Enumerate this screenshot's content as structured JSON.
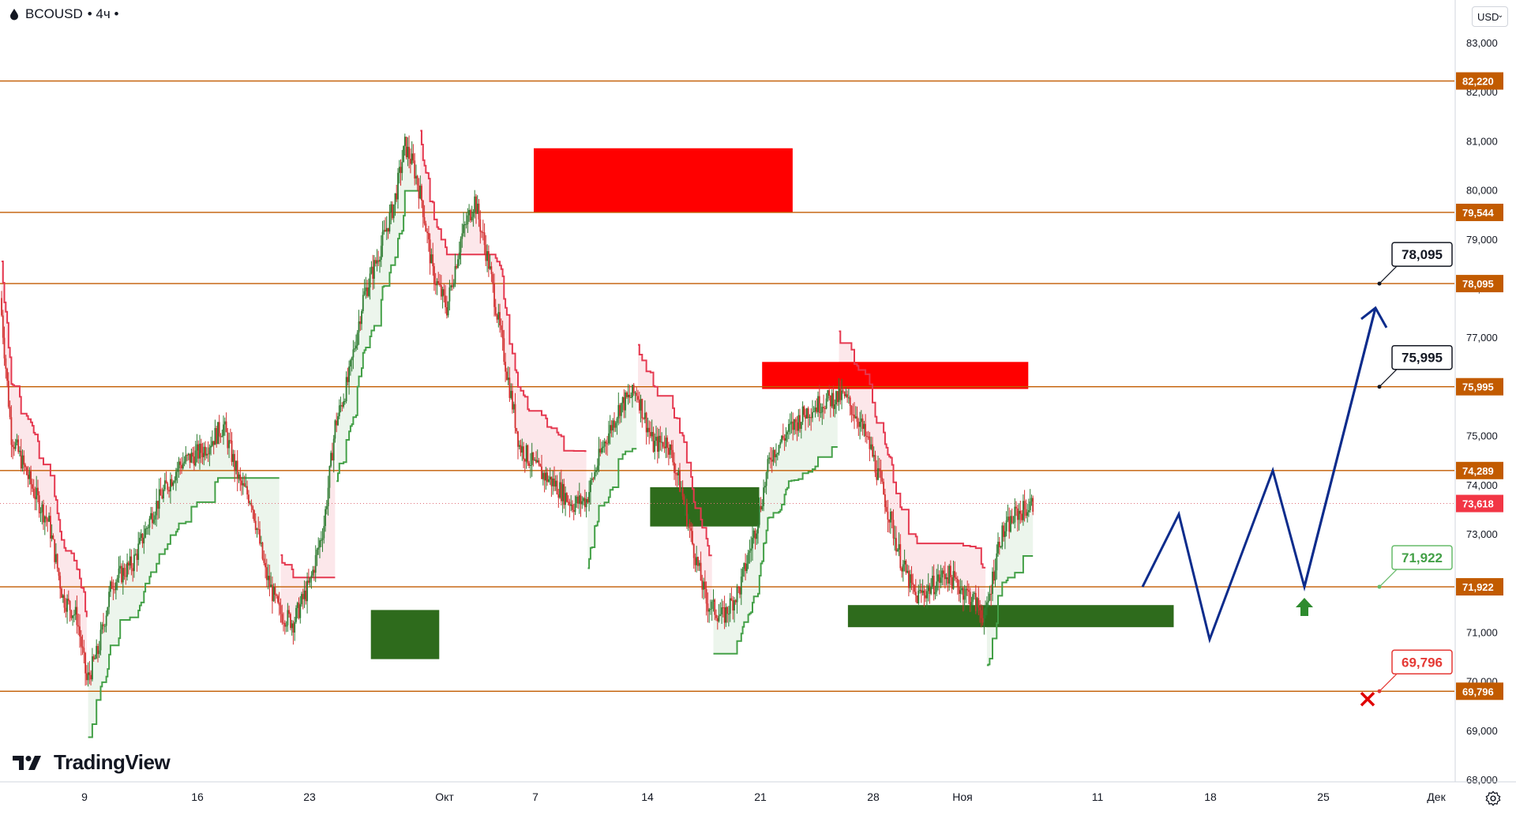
{
  "header": {
    "symbol": "BCOUSD",
    "interval": "• 4ч •"
  },
  "currency_selector": {
    "value": "USD",
    "icon": "chevron-down-icon"
  },
  "branding": {
    "logo_text": "TradingView"
  },
  "settings": {
    "icon": "gear-icon"
  },
  "colors": {
    "up": "#2e7d32",
    "down": "#d32f2f",
    "level": "#c25b00",
    "supertrend_up": "#43a047",
    "supertrend_down": "#e53950",
    "projection": "#0d2c8c",
    "zone_red": "#ff0000",
    "zone_green": "#2e6b1c"
  },
  "chart_data": {
    "type": "candlestick",
    "symbol": "BCOUSD",
    "timeframe": "4ч",
    "y_axis": {
      "range": [
        67700,
        83800
      ],
      "ticks": [
        68000,
        69000,
        70000,
        71000,
        72000,
        73000,
        74000,
        75000,
        76000,
        77000,
        78000,
        79000,
        80000,
        81000,
        82000,
        83000
      ],
      "tick_labels": [
        "68,000",
        "69,000",
        "70,000",
        "71,000",
        "72,000",
        "73,000",
        "74,000",
        "75,000",
        "76,000",
        "77,000",
        "78,000",
        "79,000",
        "80,000",
        "81,000",
        "82,000",
        "83,000"
      ]
    },
    "x_axis": {
      "labels": [
        "9",
        "16",
        "23",
        "Окт",
        "7",
        "14",
        "21",
        "28",
        "Ноя",
        "11",
        "18",
        "25",
        "Дек"
      ]
    },
    "current_price": {
      "value": 73618,
      "label": "73,618"
    },
    "horizontal_levels": [
      {
        "value": 82220,
        "label": "82,220"
      },
      {
        "value": 79544,
        "label": "79,544"
      },
      {
        "value": 78095,
        "label": "78,095"
      },
      {
        "value": 75995,
        "label": "75,995"
      },
      {
        "value": 74289,
        "label": "74,289"
      },
      {
        "value": 71922,
        "label": "71,922"
      },
      {
        "value": 69796,
        "label": "69,796"
      }
    ],
    "callouts": [
      {
        "value": 78095,
        "label": "78,095",
        "style": "target"
      },
      {
        "value": 75995,
        "label": "75,995",
        "style": "target"
      },
      {
        "value": 71922,
        "label": "71,922",
        "style": "entry"
      },
      {
        "value": 69796,
        "label": "69,796",
        "style": "stop"
      }
    ],
    "supply_zones": [
      {
        "from": [
          0.367,
          0.545
        ],
        "price": [
          79550,
          80850
        ]
      },
      {
        "from": [
          0.524,
          0.707
        ],
        "price": [
          75950,
          76500
        ]
      }
    ],
    "demand_zones": [
      {
        "from": [
          0.255,
          0.302
        ],
        "price": [
          70450,
          71450
        ]
      },
      {
        "from": [
          0.447,
          0.522
        ],
        "price": [
          73150,
          73950
        ]
      },
      {
        "from": [
          0.583,
          0.807
        ],
        "price": [
          71100,
          71550
        ]
      }
    ],
    "projection_path": [
      {
        "date": "Ноя 14",
        "price": 71922
      },
      {
        "date": "Ноя 16",
        "price": 73400
      },
      {
        "date": "Ноя 18",
        "price": 70850
      },
      {
        "date": "Ноя 21",
        "price": 74289
      },
      {
        "date": "Ноя 23",
        "price": 71922
      },
      {
        "date": "Ноя 27",
        "price": 77600
      }
    ]
  }
}
